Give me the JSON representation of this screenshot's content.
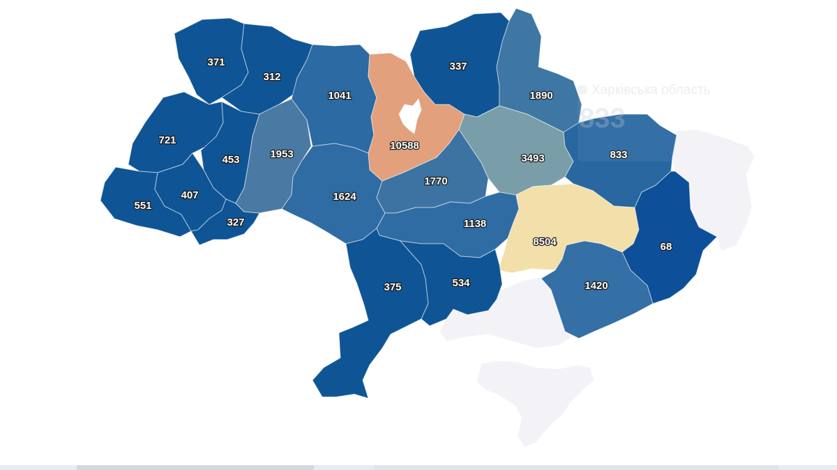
{
  "map": {
    "regions": [
      {
        "id": "volyn",
        "value": "371",
        "color": "#0f5595"
      },
      {
        "id": "rivne",
        "value": "312",
        "color": "#0f5595"
      },
      {
        "id": "lviv",
        "value": "721",
        "color": "#0f5595"
      },
      {
        "id": "ternopil",
        "value": "453",
        "color": "#0f5595"
      },
      {
        "id": "zakarpattia",
        "value": "551",
        "color": "#0f5595"
      },
      {
        "id": "ivano-frankivsk",
        "value": "407",
        "color": "#0f5595"
      },
      {
        "id": "chernivtsi",
        "value": "327",
        "color": "#0f5595"
      },
      {
        "id": "khmelnytskyi",
        "value": "1953",
        "color": "#4a7aa3"
      },
      {
        "id": "zhytomyr",
        "value": "1041",
        "color": "#2b6aa2"
      },
      {
        "id": "kyiv-oblast",
        "value": "10588",
        "color": "#e3a07c"
      },
      {
        "id": "chernihiv",
        "value": "337",
        "color": "#0f5595"
      },
      {
        "id": "sumy",
        "value": "1890",
        "color": "#3e76a4"
      },
      {
        "id": "poltava",
        "value": "3493",
        "color": "#7a9ea9"
      },
      {
        "id": "kharkiv",
        "value": "833",
        "color": "#2867a0"
      },
      {
        "id": "vinnytsia",
        "value": "1624",
        "color": "#2f6ca4"
      },
      {
        "id": "cherkasy",
        "value": "1770",
        "color": "#3c73a3"
      },
      {
        "id": "kirovohrad",
        "value": "1138",
        "color": "#2f6ca4"
      },
      {
        "id": "dnipropetrovsk",
        "value": "8504",
        "color": "#f3dfa9"
      },
      {
        "id": "donetsk",
        "value": "68",
        "color": "#0d4f98"
      },
      {
        "id": "zaporizhzhia",
        "value": "1420",
        "color": "#346fa5"
      },
      {
        "id": "odesa",
        "value": "375",
        "color": "#0f5595"
      },
      {
        "id": "mykolaiv",
        "value": "534",
        "color": "#0f5595"
      },
      {
        "id": "kherson",
        "value": "",
        "color": "#f3f3f7"
      },
      {
        "id": "luhansk",
        "value": "",
        "color": "#f3f3f7"
      },
      {
        "id": "crimea",
        "value": "",
        "color": "#f3f3f7"
      },
      {
        "id": "kyiv-city",
        "value": "",
        "color": "#ffffff"
      }
    ]
  },
  "tooltip": {
    "region_name": "Харківська область",
    "value": "833"
  },
  "colors": {
    "background": "#ffffff",
    "label_fill": "#ffffff",
    "label_stroke": "#1a1a1a"
  }
}
